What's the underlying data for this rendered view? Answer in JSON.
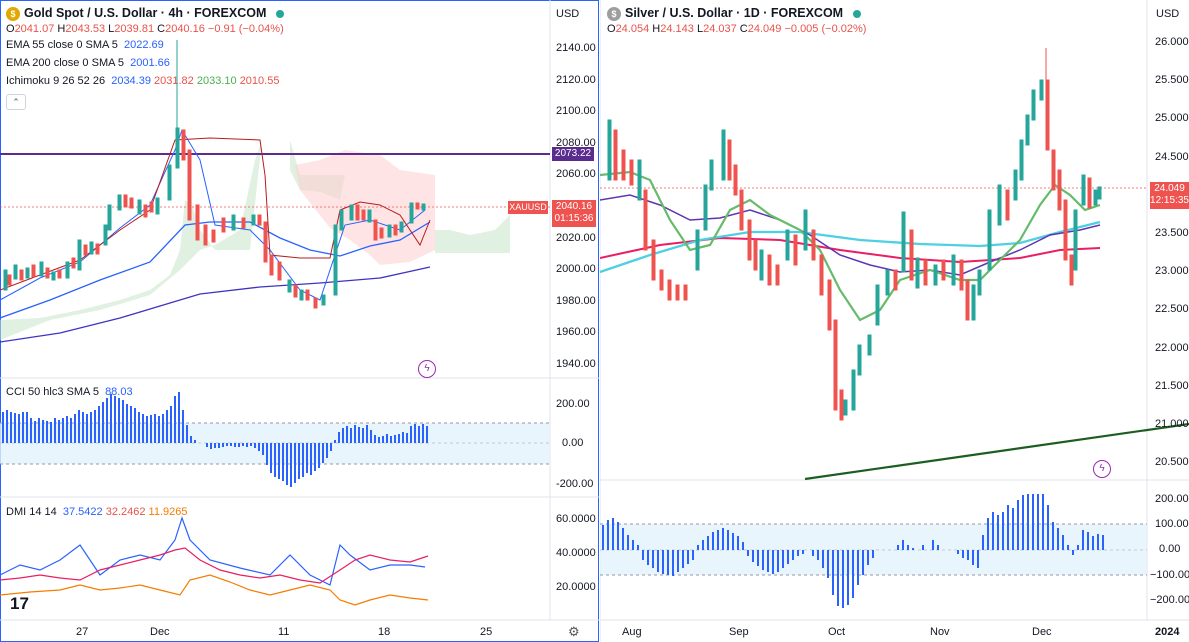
{
  "left": {
    "title": "Gold Spot / U.S. Dollar · 4h · FOREXCOM",
    "currency": "USD",
    "ohlc": {
      "o": "2041.07",
      "h": "2043.53",
      "l": "2039.81",
      "c": "2040.16",
      "chg": "−0.91 (−0.04%)"
    },
    "ema55": {
      "label": "EMA 55 close 0 SMA 5",
      "value": "2022.69"
    },
    "ema200": {
      "label": "EMA 200 close 0 SMA 5",
      "value": "2001.66"
    },
    "ichimoku": {
      "label": "Ichimoku 9 26 52 26",
      "v1": "2034.39",
      "v2": "2031.82",
      "v3": "2033.10",
      "v4": "2010.55"
    },
    "cci": {
      "label": "CCI 50 hlc3 SMA 5",
      "value": "88.03"
    },
    "dmi": {
      "label": "DMI 14 14",
      "v1": "37.5422",
      "v2": "32.2462",
      "v3": "11.9265"
    },
    "price_ticks": [
      "2140.00",
      "2120.00",
      "2100.00",
      "2080.00",
      "2060.00",
      "2040.00",
      "2020.00",
      "2000.00",
      "1980.00",
      "1960.00",
      "1940.00"
    ],
    "line_price": "2073.22",
    "symbol_tag": "XAUUSD",
    "last_price": "2040.16",
    "countdown": "01:15:36",
    "cci_ticks": [
      "200.00",
      "0.00",
      "-200.00"
    ],
    "dmi_ticks": [
      "60.0000",
      "40.0000",
      "20.0000"
    ],
    "x_ticks": [
      "27",
      "Dec",
      "11",
      "18",
      "25"
    ],
    "logo": "17"
  },
  "right": {
    "title": "Silver / U.S. Dollar · 1D · FOREXCOM",
    "currency": "USD",
    "ohlc": {
      "o": "24.054",
      "h": "24.143",
      "l": "24.037",
      "c": "24.049",
      "chg": "−0.005 (−0.02%)"
    },
    "price_ticks": [
      "26.000",
      "25.500",
      "25.000",
      "24.500",
      "24.000",
      "23.500",
      "23.000",
      "22.500",
      "22.000",
      "21.500",
      "21.000",
      "20.500"
    ],
    "last_price": "24.049",
    "countdown": "12:15:35",
    "osc_ticks": [
      "200.00",
      "100.00",
      "0.00",
      "−100.00",
      "−200.00"
    ],
    "x_ticks": [
      "Aug",
      "Sep",
      "Oct",
      "Nov",
      "Dec",
      "2024"
    ]
  },
  "colors": {
    "up": "#26a69a",
    "down": "#ef5350",
    "accent": "#2962ff",
    "purple": "#5b2c8f"
  },
  "icons": [
    "gold-coin-icon",
    "market-open-dot-icon",
    "eye-icon",
    "collapse-icon",
    "lightning-icon",
    "settings-gear-icon",
    "tradingview-logo-icon"
  ]
}
